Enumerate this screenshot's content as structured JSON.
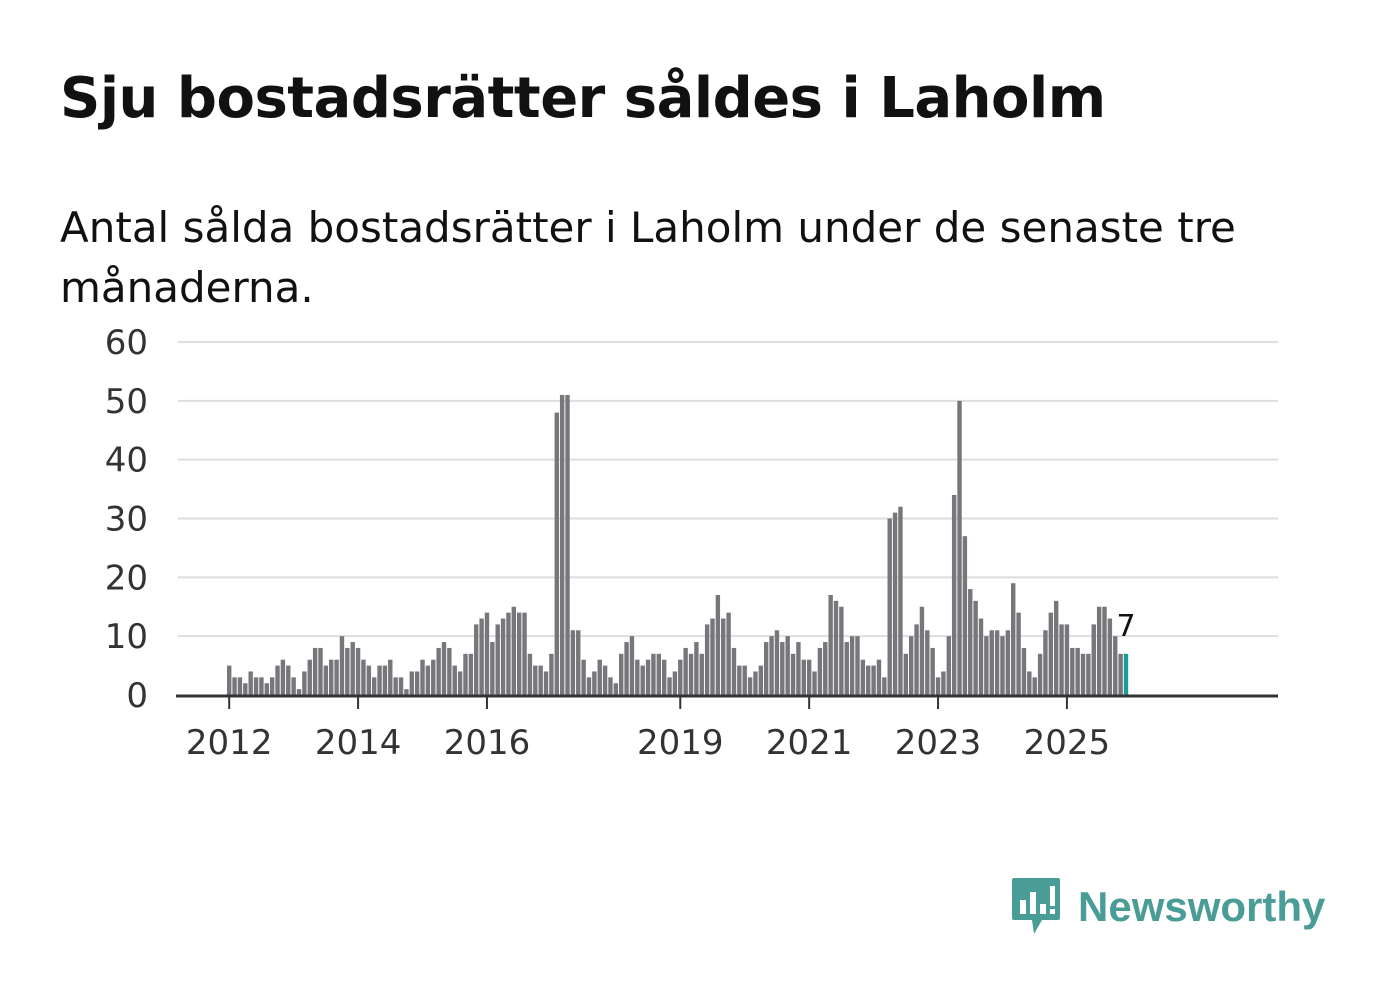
{
  "header": {
    "title": "Sju bostadsrätter såldes i Laholm",
    "subtitle": "Antal sålda bostadsrätter i Laholm under de senaste tre månaderna."
  },
  "brand": {
    "name": "Newsworthy",
    "color": "#4a9d96"
  },
  "colors": {
    "bar": "#77767b",
    "highlight": "#1a9c97",
    "grid": "#dedede",
    "axis": "#333333"
  },
  "chart_data": {
    "type": "bar",
    "title": "Sju bostadsrätter såldes i Laholm",
    "subtitle": "Antal sålda bostadsrätter i Laholm under de senaste tre månaderna.",
    "xlabel": "",
    "ylabel": "",
    "ylim": [
      0,
      60
    ],
    "yticks": [
      0,
      10,
      20,
      30,
      40,
      50,
      60
    ],
    "xtick_labels": [
      "2012",
      "2014",
      "2016",
      "2019",
      "2021",
      "2023",
      "2025"
    ],
    "xtick_index": [
      0,
      24,
      48,
      84,
      108,
      132,
      156
    ],
    "grid": true,
    "values": [
      5,
      3,
      3,
      2,
      4,
      3,
      3,
      2,
      3,
      5,
      6,
      5,
      3,
      1,
      4,
      6,
      8,
      8,
      5,
      6,
      6,
      10,
      8,
      9,
      8,
      6,
      5,
      3,
      5,
      5,
      6,
      3,
      3,
      1,
      4,
      4,
      6,
      5,
      6,
      8,
      9,
      8,
      5,
      4,
      7,
      7,
      12,
      13,
      14,
      9,
      12,
      13,
      14,
      15,
      14,
      14,
      7,
      5,
      5,
      4,
      7,
      48,
      51,
      51,
      11,
      11,
      6,
      3,
      4,
      6,
      5,
      3,
      2,
      7,
      9,
      10,
      6,
      5,
      6,
      7,
      7,
      6,
      3,
      4,
      6,
      8,
      7,
      9,
      7,
      12,
      13,
      17,
      13,
      14,
      8,
      5,
      5,
      3,
      4,
      5,
      9,
      10,
      11,
      9,
      10,
      7,
      9,
      6,
      6,
      4,
      8,
      9,
      17,
      16,
      15,
      9,
      10,
      10,
      6,
      5,
      5,
      6,
      3,
      30,
      31,
      32,
      7,
      10,
      12,
      15,
      11,
      8,
      3,
      4,
      10,
      34,
      50,
      27,
      18,
      16,
      13,
      10,
      11,
      11,
      10,
      11,
      19,
      14,
      8,
      4,
      3,
      7,
      11,
      14,
      16,
      12,
      12,
      8,
      8,
      7,
      7,
      12,
      15,
      15,
      13,
      10,
      7,
      7
    ],
    "highlight_last": true,
    "data_label": "7"
  }
}
